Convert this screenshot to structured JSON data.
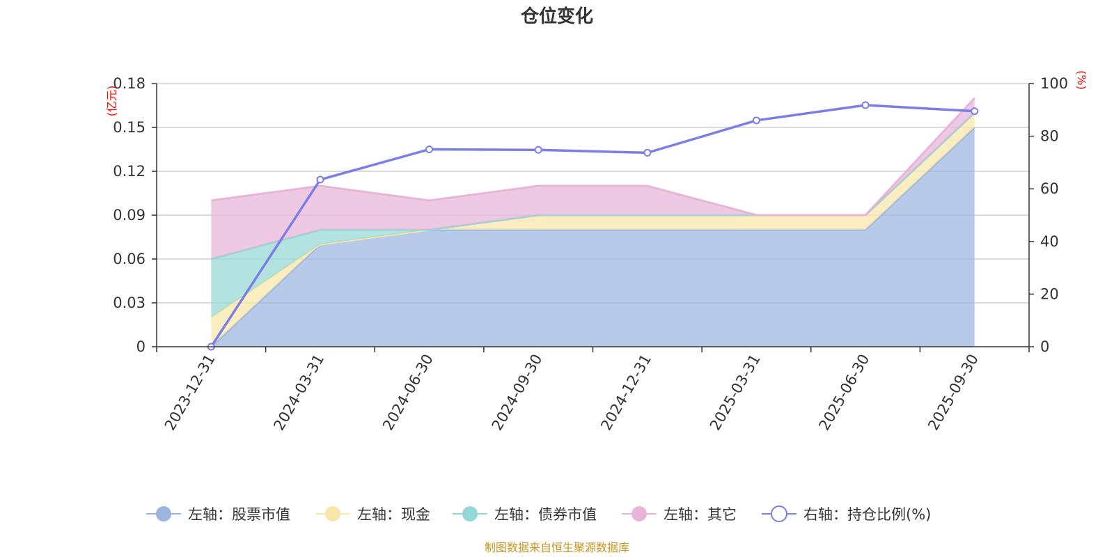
{
  "chart_data": {
    "type": "area",
    "title": "仓位变化",
    "categories": [
      "2023-12-31",
      "2024-03-31",
      "2024-06-30",
      "2024-09-30",
      "2024-12-31",
      "2025-03-31",
      "2025-06-30",
      "2025-09-30"
    ],
    "stacked_series": [
      {
        "name": "左轴：股票市值",
        "axis": "left",
        "color": "#9bb5e0",
        "values": [
          0,
          0.07,
          0.08,
          0.08,
          0.08,
          0.08,
          0.08,
          0.15
        ]
      },
      {
        "name": "左轴：现金",
        "axis": "left",
        "color": "#f8e7a8",
        "values": [
          0.02,
          0.0,
          0.0,
          0.01,
          0.01,
          0.01,
          0.01,
          0.01
        ]
      },
      {
        "name": "左轴：债券市值",
        "axis": "left",
        "color": "#94d8d6",
        "values": [
          0.04,
          0.01,
          0.0,
          0.0,
          0.0,
          0.0,
          0.0,
          0.0
        ]
      },
      {
        "name": "左轴：其它",
        "axis": "left",
        "color": "#e8b4d8",
        "values": [
          0.04,
          0.03,
          0.02,
          0.02,
          0.02,
          0.0,
          0.0,
          0.01
        ]
      }
    ],
    "line_series": {
      "name": "右轴：持仓比例(%)",
      "axis": "right",
      "color": "#7b7de8",
      "values": [
        0,
        63.5,
        75,
        74.8,
        73.7,
        86,
        91.8,
        89.5
      ]
    },
    "left_axis": {
      "unit": "(亿元)",
      "ticks": [
        "0",
        "0.03",
        "0.06",
        "0.09",
        "0.12",
        "0.15",
        "0.18"
      ],
      "min": 0,
      "max": 0.18
    },
    "right_axis": {
      "unit": "(%)",
      "ticks": [
        "0",
        "20",
        "40",
        "60",
        "80",
        "100"
      ],
      "min": 0,
      "max": 100
    },
    "grid": true,
    "legend": "bottom-center"
  },
  "source": "制图数据来自恒生聚源数据库"
}
